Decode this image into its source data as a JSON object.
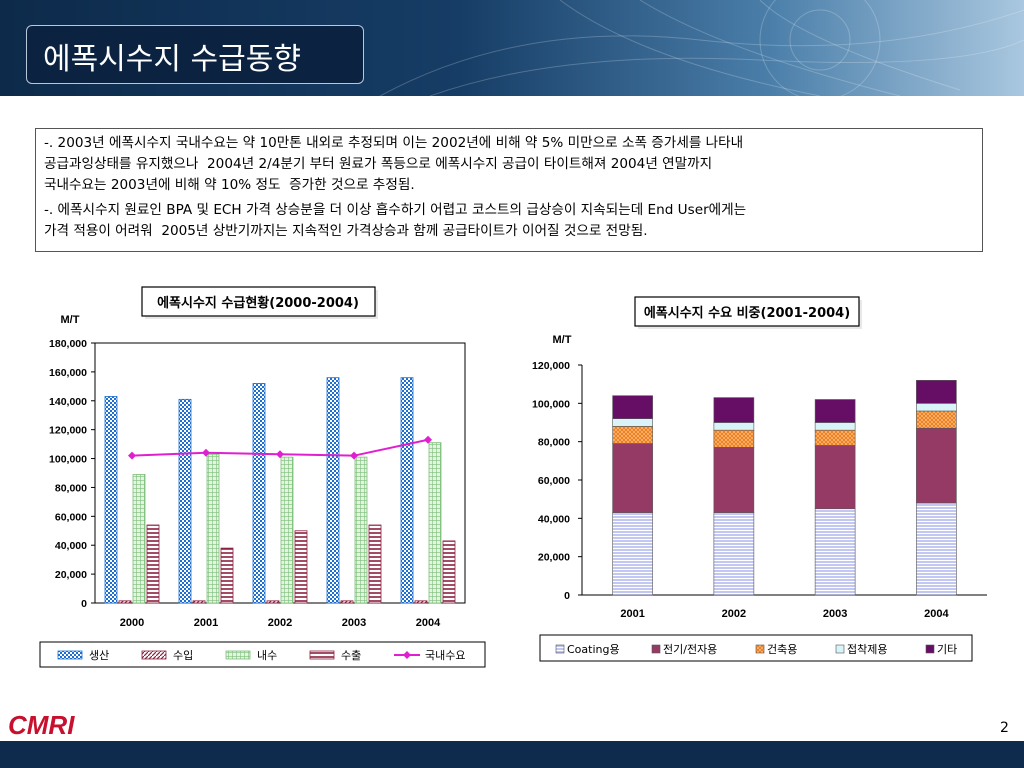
{
  "slide": {
    "title": "에폭시수지 수급동향",
    "summary_p1": "-. 2003년 에폭시수지 국내수요는 약 10만톤 내외로 추정되며 이는 2002년에 비해 약 5% 미만으로 소폭 증가세를 나타내\n공급과잉상태를 유지했으나  2004년 2/4분기 부터 원료가 폭등으로 에폭시수지 공급이 타이트해져 2004년 연말까지\n국내수요는 2003년에 비해 약 10% 정도  증가한 것으로 추정됨.",
    "summary_p2": "-. 에폭시수지 원료인 BPA 및 ECH 가격 상승분을 더 이상 흡수하기 어렵고 코스트의 급상승이 지속되는데 End User에게는\n가격 적용이 어려워  2005년 상반기까지는 지속적인 가격상승과 함께 공급타이트가 이어질 것으로 전망됨.",
    "logo": "CMRI",
    "page_number": "2",
    "colors": {
      "header_dark": "#0d2a4a",
      "footer": "#0e2a4d",
      "logo_red": "#c8102e"
    }
  },
  "chart_data": [
    {
      "type": "bar",
      "title": "에폭시수지 수급현황(2000-2004)",
      "ylabel": "M/T",
      "categories": [
        "2000",
        "2001",
        "2002",
        "2003",
        "2004"
      ],
      "ylim": [
        0,
        180000
      ],
      "yticks": [
        "0",
        "20,000",
        "40,000",
        "60,000",
        "80,000",
        "100,000",
        "120,000",
        "140,000",
        "160,000",
        "180,000"
      ],
      "series": [
        {
          "name": "생산",
          "values": [
            143000,
            141000,
            152000,
            156000,
            156000
          ],
          "color": "#1f6fd0",
          "pattern": "checker"
        },
        {
          "name": "수입",
          "values": [
            1500,
            1500,
            1500,
            1500,
            1500
          ],
          "color": "#8b2040",
          "pattern": "diag"
        },
        {
          "name": "내수",
          "values": [
            89000,
            103000,
            101000,
            101000,
            111000
          ],
          "color": "#7cbf7a",
          "pattern": "grid"
        },
        {
          "name": "수출",
          "values": [
            54000,
            38000,
            50000,
            54000,
            43000
          ],
          "color": "#8b2040",
          "pattern": "hstripe"
        },
        {
          "name": "국내수요",
          "type": "line",
          "values": [
            102000,
            104000,
            103000,
            102000,
            113000
          ],
          "color": "#e020d0"
        }
      ],
      "legend_position": "bottom",
      "grid": false
    },
    {
      "type": "bar",
      "stacked": true,
      "title": "에폭시수지 수요 비중(2001-2004)",
      "ylabel": "M/T",
      "categories": [
        "2001",
        "2002",
        "2003",
        "2004"
      ],
      "ylim": [
        0,
        120000
      ],
      "yticks": [
        "0",
        "20,000",
        "40,000",
        "60,000",
        "80,000",
        "100,000",
        "120,000"
      ],
      "series": [
        {
          "name": "Coating용",
          "values": [
            43000,
            43000,
            45000,
            48000
          ],
          "color": "#9aa3e8",
          "pattern": "hstripe"
        },
        {
          "name": "전기/전자용",
          "values": [
            36000,
            34000,
            33000,
            39000
          ],
          "color": "#943a64"
        },
        {
          "name": "건축용",
          "values": [
            9000,
            9000,
            8000,
            9000
          ],
          "color": "#f08020",
          "pattern": "crosshatch"
        },
        {
          "name": "접착제용",
          "values": [
            4000,
            4000,
            4000,
            4000
          ],
          "color": "#d8f4f8"
        },
        {
          "name": "기타",
          "values": [
            12000,
            13000,
            12000,
            12000
          ],
          "color": "#660e66"
        }
      ],
      "legend_position": "bottom",
      "grid": false
    }
  ]
}
